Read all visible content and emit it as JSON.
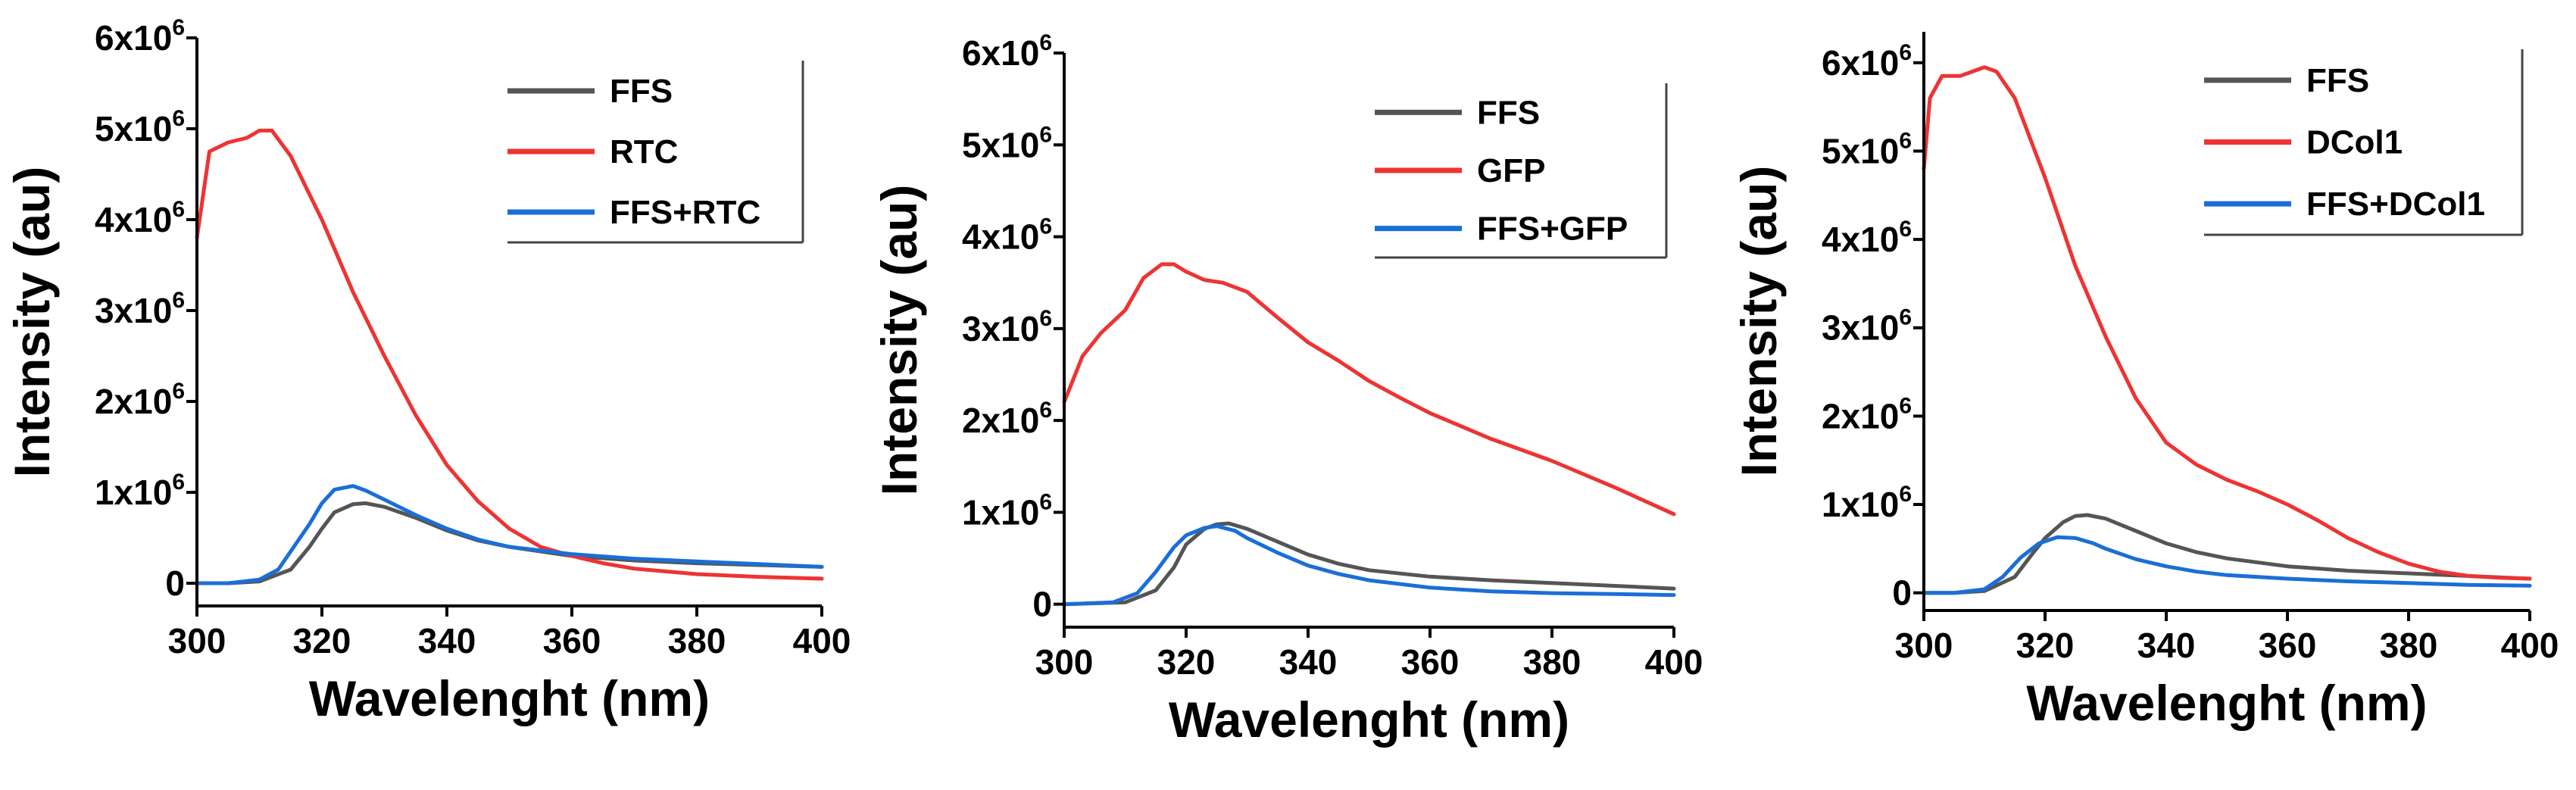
{
  "chart_data": [
    {
      "type": "line",
      "xlabel": "Wavelenght (nm)",
      "ylabel": "Intensity (au)",
      "xlim": [
        300,
        400
      ],
      "ylim": [
        -250000,
        6000000
      ],
      "xticks": [
        300,
        320,
        340,
        360,
        380,
        400
      ],
      "yticks": [
        {
          "value": 0,
          "base": "0",
          "sup": ""
        },
        {
          "value": 1000000,
          "base": "1x10",
          "sup": "6"
        },
        {
          "value": 2000000,
          "base": "2x10",
          "sup": "6"
        },
        {
          "value": 3000000,
          "base": "3x10",
          "sup": "6"
        },
        {
          "value": 4000000,
          "base": "4x10",
          "sup": "6"
        },
        {
          "value": 5000000,
          "base": "5x10",
          "sup": "6"
        },
        {
          "value": 6000000,
          "base": "6x10",
          "sup": "6"
        }
      ],
      "legend": {
        "position": "top-right"
      },
      "series": [
        {
          "name": "FFS",
          "color": "#555555",
          "x": [
            300,
            305,
            310,
            315,
            318,
            320,
            322,
            325,
            327,
            330,
            335,
            340,
            345,
            350,
            360,
            370,
            380,
            390,
            400
          ],
          "y": [
            0,
            0,
            20000,
            150000,
            400000,
            600000,
            780000,
            870000,
            880000,
            840000,
            720000,
            580000,
            470000,
            400000,
            300000,
            250000,
            220000,
            200000,
            180000
          ]
        },
        {
          "name": "RTC",
          "color": "#ee3333",
          "x": [
            300,
            302,
            305,
            308,
            310,
            312,
            315,
            320,
            325,
            330,
            335,
            340,
            345,
            350,
            355,
            360,
            365,
            370,
            380,
            390,
            400
          ],
          "y": [
            3800000,
            4750000,
            4850000,
            4900000,
            4980000,
            4980000,
            4700000,
            4000000,
            3200000,
            2500000,
            1850000,
            1300000,
            900000,
            600000,
            400000,
            300000,
            220000,
            160000,
            100000,
            70000,
            50000
          ]
        },
        {
          "name": "FFS+RTC",
          "color": "#1a6fd6",
          "x": [
            300,
            305,
            310,
            313,
            315,
            318,
            320,
            322,
            325,
            327,
            330,
            335,
            340,
            345,
            350,
            360,
            370,
            380,
            390,
            400
          ],
          "y": [
            0,
            0,
            40000,
            150000,
            350000,
            650000,
            880000,
            1030000,
            1070000,
            1020000,
            920000,
            750000,
            600000,
            480000,
            400000,
            320000,
            270000,
            240000,
            210000,
            180000
          ]
        }
      ]
    },
    {
      "type": "line",
      "xlabel": "Wavelenght (nm)",
      "ylabel": "Intensity (au)",
      "xlim": [
        300,
        400
      ],
      "ylim": [
        -250000,
        6000000
      ],
      "xticks": [
        300,
        320,
        340,
        360,
        380,
        400
      ],
      "yticks": [
        {
          "value": 0,
          "base": "0",
          "sup": ""
        },
        {
          "value": 1000000,
          "base": "1x10",
          "sup": "6"
        },
        {
          "value": 2000000,
          "base": "2x10",
          "sup": "6"
        },
        {
          "value": 3000000,
          "base": "3x10",
          "sup": "6"
        },
        {
          "value": 4000000,
          "base": "4x10",
          "sup": "6"
        },
        {
          "value": 5000000,
          "base": "5x10",
          "sup": "6"
        },
        {
          "value": 6000000,
          "base": "6x10",
          "sup": "6"
        }
      ],
      "legend": {
        "position": "top-right"
      },
      "series": [
        {
          "name": "FFS",
          "color": "#555555",
          "x": [
            300,
            310,
            315,
            318,
            320,
            323,
            325,
            327,
            330,
            335,
            340,
            345,
            350,
            360,
            370,
            380,
            390,
            400
          ],
          "y": [
            0,
            20000,
            150000,
            400000,
            650000,
            820000,
            870000,
            880000,
            820000,
            680000,
            540000,
            440000,
            370000,
            300000,
            260000,
            230000,
            200000,
            170000
          ]
        },
        {
          "name": "GFP",
          "color": "#ee3333",
          "x": [
            300,
            303,
            306,
            310,
            313,
            316,
            318,
            320,
            323,
            326,
            330,
            335,
            340,
            345,
            350,
            355,
            360,
            365,
            370,
            375,
            380,
            385,
            390,
            395,
            400
          ],
          "y": [
            2200000,
            2700000,
            2950000,
            3200000,
            3550000,
            3700000,
            3700000,
            3620000,
            3530000,
            3500000,
            3400000,
            3120000,
            2850000,
            2650000,
            2430000,
            2250000,
            2080000,
            1940000,
            1800000,
            1680000,
            1560000,
            1420000,
            1280000,
            1130000,
            980000
          ]
        },
        {
          "name": "FFS+GFP",
          "color": "#1a6fd6",
          "x": [
            300,
            308,
            312,
            315,
            318,
            320,
            323,
            325,
            328,
            330,
            335,
            340,
            345,
            350,
            360,
            370,
            380,
            390,
            400
          ],
          "y": [
            0,
            20000,
            120000,
            350000,
            620000,
            750000,
            830000,
            850000,
            800000,
            720000,
            560000,
            420000,
            330000,
            260000,
            180000,
            140000,
            120000,
            110000,
            100000
          ]
        }
      ]
    },
    {
      "type": "line",
      "xlabel": "Wavelenght (nm)",
      "ylabel": "Intensity (au)",
      "xlim": [
        300,
        400
      ],
      "ylim": [
        -200000,
        6350000
      ],
      "xticks": [
        300,
        320,
        340,
        360,
        380,
        400
      ],
      "yticks": [
        {
          "value": 0,
          "base": "0",
          "sup": ""
        },
        {
          "value": 1000000,
          "base": "1x10",
          "sup": "6"
        },
        {
          "value": 2000000,
          "base": "2x10",
          "sup": "6"
        },
        {
          "value": 3000000,
          "base": "3x10",
          "sup": "6"
        },
        {
          "value": 4000000,
          "base": "4x10",
          "sup": "6"
        },
        {
          "value": 5000000,
          "base": "5x10",
          "sup": "6"
        },
        {
          "value": 6000000,
          "base": "6x10",
          "sup": "6"
        }
      ],
      "legend": {
        "position": "top-right"
      },
      "series": [
        {
          "name": "FFS",
          "color": "#555555",
          "x": [
            300,
            305,
            310,
            315,
            318,
            320,
            323,
            325,
            327,
            330,
            335,
            340,
            345,
            350,
            360,
            370,
            380,
            390,
            400
          ],
          "y": [
            0,
            0,
            20000,
            180000,
            450000,
            620000,
            800000,
            870000,
            880000,
            840000,
            700000,
            560000,
            460000,
            390000,
            300000,
            250000,
            220000,
            190000,
            160000
          ]
        },
        {
          "name": "DCol1",
          "color": "#ee3333",
          "x": [
            300,
            301,
            303,
            306,
            308,
            310,
            312,
            315,
            320,
            325,
            330,
            335,
            340,
            345,
            350,
            355,
            360,
            365,
            370,
            375,
            380,
            385,
            390,
            395,
            400
          ],
          "y": [
            4800000,
            5600000,
            5850000,
            5850000,
            5900000,
            5950000,
            5900000,
            5600000,
            4700000,
            3700000,
            2900000,
            2200000,
            1700000,
            1450000,
            1280000,
            1150000,
            1000000,
            820000,
            620000,
            460000,
            330000,
            240000,
            190000,
            170000,
            160000
          ]
        },
        {
          "name": "FFS+DCol1",
          "color": "#1a6fd6",
          "x": [
            300,
            305,
            310,
            313,
            316,
            319,
            322,
            325,
            328,
            330,
            335,
            340,
            345,
            350,
            360,
            370,
            380,
            390,
            400
          ],
          "y": [
            0,
            0,
            40000,
            180000,
            400000,
            560000,
            630000,
            620000,
            560000,
            500000,
            380000,
            300000,
            240000,
            200000,
            160000,
            130000,
            110000,
            90000,
            80000
          ]
        }
      ]
    }
  ]
}
